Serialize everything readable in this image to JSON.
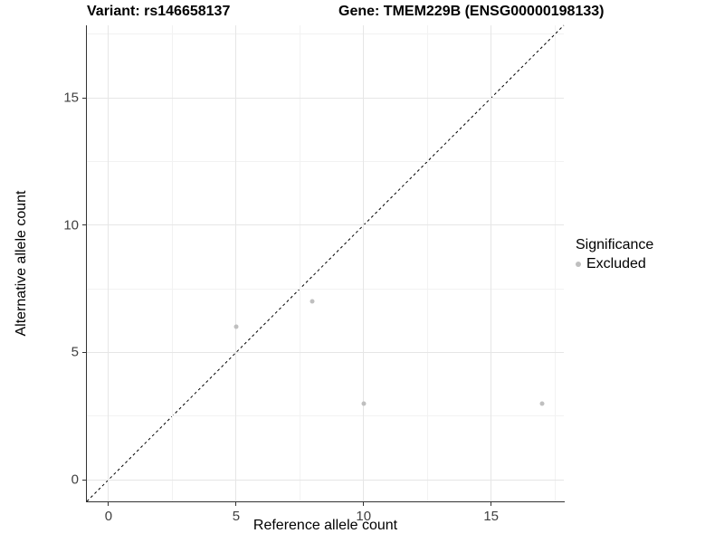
{
  "header": {
    "title_left": "Variant: rs146658137",
    "title_right": "Gene: TMEM229B (ENSG00000198133)"
  },
  "colors": {
    "point": "#bfbfbf",
    "major_grid": "#e6e6e6",
    "minor_grid": "#f2f2f2",
    "axis_line": "#333333",
    "tick_mark": "#333333",
    "tick_label": "#404040",
    "identity_line": "#000000",
    "background": "#ffffff"
  },
  "chart_data": {
    "type": "scatter",
    "title": "Variant: rs146658137   |   Gene: TMEM229B (ENSG00000198133)",
    "xlabel": "Reference allele count",
    "ylabel": "Alternative allele count",
    "xlim": [
      -0.85,
      17.85
    ],
    "ylim": [
      -0.85,
      17.85
    ],
    "x_ticks": [
      0,
      5,
      10,
      15
    ],
    "y_ticks": [
      0,
      5,
      10,
      15
    ],
    "x_minor_ticks": [
      2.5,
      7.5,
      12.5,
      17.5
    ],
    "y_minor_ticks": [
      2.5,
      7.5,
      12.5,
      17.5
    ],
    "grid": true,
    "legend": {
      "position": "right",
      "title": "Significance",
      "items": [
        {
          "label": "Excluded",
          "color": "#bfbfbf"
        }
      ]
    },
    "series": [
      {
        "name": "Excluded",
        "color": "#bfbfbf",
        "marker_size_px": 5,
        "points": [
          [
            5,
            6
          ],
          [
            8,
            7
          ],
          [
            10,
            3
          ],
          [
            17,
            3
          ]
        ]
      }
    ],
    "reference_line": {
      "type": "identity",
      "equation": "y = x",
      "style": "dashed",
      "color": "#000000"
    }
  }
}
